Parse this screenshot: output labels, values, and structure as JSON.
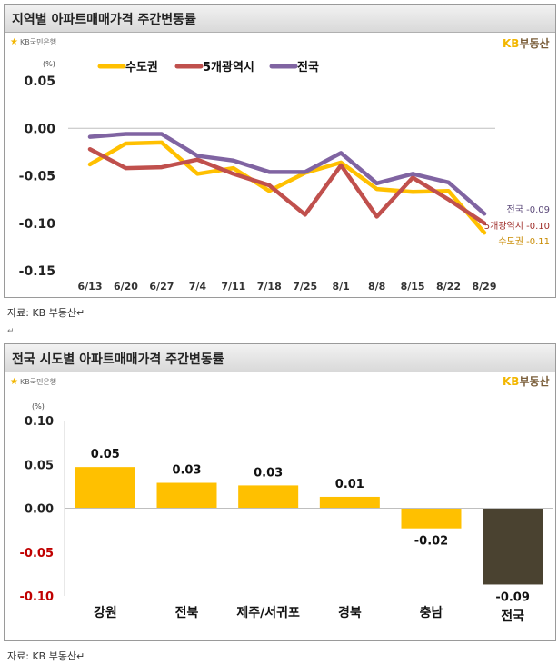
{
  "chart1": {
    "title": "지역별 아파트매매가격 주간변동률",
    "logo_left": "KB국민은행",
    "logo_right_kb": "KB",
    "logo_right_rest": "부동산",
    "unit": "(%)",
    "source": "자료: KB 부동산↵",
    "colors": {
      "수도권": "#FFC000",
      "5개광역시": "#C0504D",
      "전국": "#8064A2"
    }
  },
  "chart2": {
    "title": "전국 시도별 아파트매매가격 주간변동률",
    "logo_left": "KB국민은행",
    "logo_right_kb": "KB",
    "logo_right_rest": "부동산",
    "unit": "(%)",
    "source": "자료: KB 부동산↵",
    "colors": {
      "positive": "#FFC000",
      "negative": "#FFC000",
      "전국": "#4A4230"
    }
  },
  "between_mark": "↵",
  "chart_data": [
    {
      "type": "line",
      "x": [
        "6/13",
        "6/20",
        "6/27",
        "7/4",
        "7/11",
        "7/18",
        "7/25",
        "8/1",
        "8/8",
        "8/15",
        "8/22",
        "8/29"
      ],
      "series": [
        {
          "name": "수도권",
          "values": [
            -0.038,
            -0.016,
            -0.015,
            -0.048,
            -0.042,
            -0.066,
            -0.047,
            -0.036,
            -0.064,
            -0.067,
            -0.066,
            -0.11
          ],
          "end_label": "수도권 -0.11"
        },
        {
          "name": "5개광역시",
          "values": [
            -0.022,
            -0.042,
            -0.041,
            -0.033,
            -0.048,
            -0.06,
            -0.091,
            -0.039,
            -0.093,
            -0.052,
            -0.075,
            -0.1
          ],
          "end_label": "5개광역시 -0.10"
        },
        {
          "name": "전국",
          "values": [
            -0.009,
            -0.006,
            -0.006,
            -0.029,
            -0.034,
            -0.046,
            -0.046,
            -0.026,
            -0.058,
            -0.048,
            -0.057,
            -0.09
          ],
          "end_label": "전국 -0.09"
        }
      ],
      "yticks": [
        "0.05",
        "0.00",
        "-0.05",
        "-0.10",
        "-0.15"
      ],
      "ylim": [
        -0.15,
        0.05
      ],
      "legend": "top"
    },
    {
      "type": "bar",
      "categories": [
        "강원",
        "전북",
        "제주/서귀포",
        "경북",
        "충남",
        "전국"
      ],
      "values": [
        0.05,
        0.03,
        0.03,
        0.01,
        -0.02,
        -0.09
      ],
      "plotted": [
        0.047,
        0.029,
        0.026,
        0.013,
        -0.023,
        -0.087
      ],
      "value_labels": [
        "0.05",
        "0.03",
        "0.03",
        "0.01",
        "-0.02",
        "-0.09"
      ],
      "yticks": [
        "0.10",
        "0.05",
        "0.00",
        "-0.05",
        "-0.10"
      ],
      "ylim": [
        -0.1,
        0.1
      ]
    }
  ]
}
